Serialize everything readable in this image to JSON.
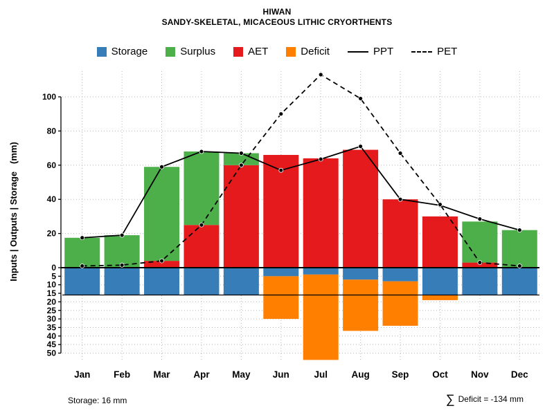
{
  "header": {
    "title": "HIWAN",
    "subtitle": "SANDY-SKELETAL, MICACEOUS LITHIC CRYORTHENTS"
  },
  "colors": {
    "storage": "#377EB8",
    "surplus": "#4DAF4A",
    "aet": "#E41A1C",
    "deficit": "#FF7F00",
    "line": "#000000",
    "grid": "#B8B8B8"
  },
  "footer": {
    "storage_note": "Storage: 16 mm",
    "sigma": "∑",
    "deficit_note": "Deficit = -134 mm"
  },
  "chart_data": {
    "type": "bar",
    "note": "Monthly water balance: stacked AET+Surplus bars above zero, Storage+Deficit bars below zero, PPT solid line and PET dashed line overlays with point markers",
    "title": "HIWAN",
    "subtitle": "SANDY-SKELETAL, MICACEOUS LITHIC CRYORTHENTS",
    "xlabel": "",
    "ylabel": "Inputs | Outputs | Storage   (mm)",
    "categories": [
      "Jan",
      "Feb",
      "Mar",
      "Apr",
      "May",
      "Jun",
      "Jul",
      "Aug",
      "Sep",
      "Oct",
      "Nov",
      "Dec"
    ],
    "ylim": [
      -54,
      115
    ],
    "yticks_above": [
      0,
      20,
      40,
      60,
      80,
      100
    ],
    "yticks_below": [
      5,
      10,
      15,
      20,
      25,
      30,
      35,
      40,
      45,
      50
    ],
    "grid": "dotted",
    "legend_position": "top",
    "storage_capacity_mm": 16,
    "series": [
      {
        "name": "Storage",
        "type": "bar-below-zero",
        "color": "#377EB8",
        "values": [
          16,
          16,
          16,
          16,
          16,
          5,
          4,
          7,
          8,
          16,
          16,
          16
        ]
      },
      {
        "name": "Surplus",
        "type": "bar-above-zero",
        "color": "#4DAF4A",
        "values": [
          17.5,
          19,
          55,
          43,
          7,
          0,
          0,
          0,
          0,
          0,
          24,
          22
        ]
      },
      {
        "name": "AET",
        "type": "bar-above-zero",
        "color": "#E41A1C",
        "values": [
          0,
          0,
          4,
          25,
          60,
          66,
          64,
          69,
          40,
          30,
          3,
          0
        ]
      },
      {
        "name": "Deficit",
        "type": "bar-below-zero",
        "color": "#FF7F00",
        "values": [
          0,
          0,
          0,
          0,
          0,
          25,
          50,
          30,
          26,
          3,
          0,
          0
        ]
      },
      {
        "name": "PPT",
        "type": "line-solid",
        "color": "#000000",
        "values": [
          17.5,
          19,
          59,
          68,
          67,
          57,
          63.5,
          71,
          40,
          36.5,
          28.5,
          22
        ]
      },
      {
        "name": "PET",
        "type": "line-dashed",
        "color": "#000000",
        "values": [
          1,
          1.5,
          4,
          25,
          60,
          90,
          113,
          99,
          67,
          37,
          3,
          1
        ]
      }
    ],
    "legend": [
      {
        "label": "Storage",
        "type": "swatch",
        "color": "#377EB8"
      },
      {
        "label": "Surplus",
        "type": "swatch",
        "color": "#4DAF4A"
      },
      {
        "label": "AET",
        "type": "swatch",
        "color": "#E41A1C"
      },
      {
        "label": "Deficit",
        "type": "swatch",
        "color": "#FF7F00"
      },
      {
        "label": "PPT",
        "type": "line-solid",
        "color": "#000000"
      },
      {
        "label": "PET",
        "type": "line-dashed",
        "color": "#000000"
      }
    ]
  }
}
